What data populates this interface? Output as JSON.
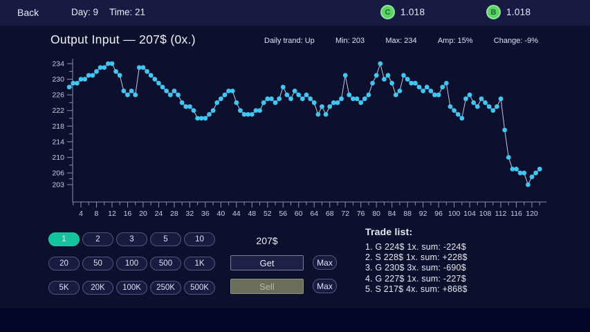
{
  "top_bar": {
    "back_label": "Back",
    "day_label": "Day: 9",
    "time_label": "Time: 21",
    "currency1": {
      "letter": "C",
      "value": "1.018"
    },
    "currency2": {
      "letter": "B",
      "value": "1.018"
    }
  },
  "header": {
    "title": "Output Input — 207$ (0x.)",
    "stats": [
      "Daily trand: Up",
      "Min: 203",
      "Max: 234",
      "Amp: 15%",
      "Change: -9%"
    ]
  },
  "chart_data": {
    "type": "line",
    "title": "Output Input — 207$ (0x.)",
    "x_start": 1,
    "values": [
      228,
      229,
      229,
      230,
      230,
      231,
      231,
      232,
      233,
      233,
      234,
      234,
      232,
      231,
      227,
      226,
      227,
      226,
      233,
      233,
      232,
      231,
      230,
      229,
      228,
      227,
      226,
      227,
      226,
      224,
      223,
      223,
      222,
      220,
      220,
      220,
      221,
      222,
      224,
      225,
      226,
      227,
      227,
      224,
      222,
      221,
      221,
      221,
      222,
      222,
      224,
      225,
      225,
      224,
      225,
      228,
      226,
      225,
      227,
      226,
      225,
      226,
      225,
      224,
      221,
      223,
      221,
      223,
      224,
      224,
      225,
      231,
      226,
      225,
      225,
      224,
      225,
      226,
      229,
      231,
      234,
      230,
      231,
      229,
      226,
      227,
      231,
      230,
      229,
      229,
      228,
      227,
      228,
      227,
      226,
      226,
      228,
      229,
      223,
      222,
      221,
      220,
      225,
      226,
      224,
      223,
      225,
      224,
      223,
      222,
      223,
      225,
      217,
      210,
      207,
      207,
      206,
      206,
      203,
      205,
      206,
      207
    ],
    "x_ticks": [
      4,
      8,
      12,
      16,
      20,
      24,
      28,
      32,
      36,
      40,
      44,
      48,
      52,
      56,
      60,
      64,
      68,
      72,
      76,
      80,
      84,
      88,
      92,
      96,
      100,
      104,
      108,
      112,
      116,
      120
    ],
    "y_ticks": [
      234,
      230,
      226,
      222,
      218,
      214,
      210,
      206,
      203
    ],
    "ylim": [
      199,
      236
    ],
    "grid": false,
    "current_price": 207,
    "stats": {
      "daily_trend": "Up",
      "min": 203,
      "max": 234,
      "amp": "15%",
      "change": "-9%"
    }
  },
  "trade_panel": {
    "quantity_rows": [
      [
        "1",
        "2",
        "3",
        "5",
        "10"
      ],
      [
        "20",
        "50",
        "100",
        "500",
        "1K"
      ],
      [
        "5K",
        "20K",
        "100K",
        "250K",
        "500K"
      ]
    ],
    "selected_quantity": "1",
    "price_label": "207$",
    "get_label": "Get",
    "sell_label": "Sell",
    "max_label": "Max",
    "sell_disabled": true
  },
  "trade_list": {
    "title": "Trade list:",
    "items": [
      "1. G 224$ 1x. sum: -224$",
      "2. S 228$ 1x. sum: +228$",
      "3. G 230$ 3x. sum: -690$",
      "4. G 227$ 1x. sum: -227$",
      "5. S 217$ 4x. sum: +868$"
    ]
  },
  "colors": {
    "point": "#3fc6f3",
    "line": "#c4c9de",
    "axis": "#8d92b0",
    "tick_label": "#c9cce0",
    "accent_selected": "#14c29d",
    "coin_green": "#5ed167",
    "sell_disabled_bg": "#696d5c"
  }
}
